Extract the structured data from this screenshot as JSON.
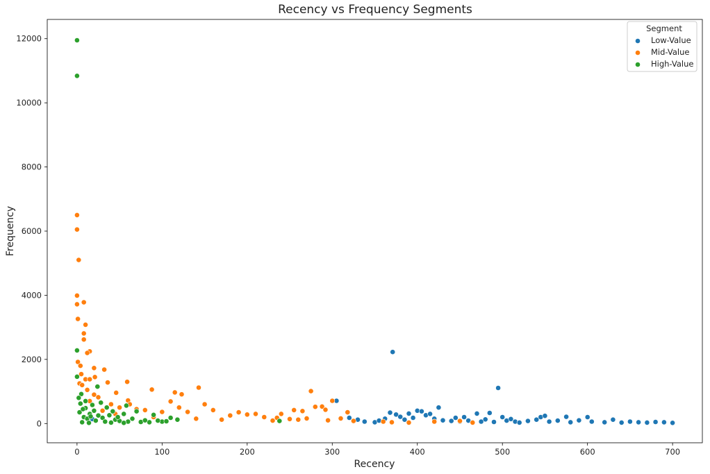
{
  "chart_data": {
    "type": "scatter",
    "title": "Recency vs Frequency Segments",
    "xlabel": "Recency",
    "ylabel": "Frequency",
    "xlim": [
      -35,
      735
    ],
    "ylim": [
      -600,
      12600
    ],
    "xticks": [
      0,
      100,
      200,
      300,
      400,
      500,
      600,
      700
    ],
    "yticks": [
      0,
      2000,
      4000,
      6000,
      8000,
      10000,
      12000
    ],
    "grid": false,
    "legend": {
      "title": "Segment",
      "placement": "top-right",
      "entries": [
        "Low-Value",
        "Mid-Value",
        "High-Value"
      ]
    },
    "series": [
      {
        "name": "Low-Value",
        "color": "#1f77b4",
        "points": [
          [
            305,
            710
          ],
          [
            320,
            180
          ],
          [
            330,
            120
          ],
          [
            338,
            60
          ],
          [
            350,
            40
          ],
          [
            355,
            90
          ],
          [
            362,
            150
          ],
          [
            368,
            340
          ],
          [
            371,
            2230
          ],
          [
            375,
            280
          ],
          [
            380,
            210
          ],
          [
            385,
            120
          ],
          [
            390,
            310
          ],
          [
            395,
            180
          ],
          [
            400,
            400
          ],
          [
            405,
            380
          ],
          [
            410,
            260
          ],
          [
            415,
            300
          ],
          [
            420,
            150
          ],
          [
            425,
            500
          ],
          [
            430,
            100
          ],
          [
            440,
            80
          ],
          [
            445,
            180
          ],
          [
            450,
            60
          ],
          [
            455,
            200
          ],
          [
            460,
            90
          ],
          [
            465,
            40
          ],
          [
            470,
            310
          ],
          [
            475,
            60
          ],
          [
            480,
            130
          ],
          [
            485,
            330
          ],
          [
            490,
            50
          ],
          [
            495,
            1110
          ],
          [
            500,
            200
          ],
          [
            505,
            90
          ],
          [
            510,
            140
          ],
          [
            515,
            60
          ],
          [
            520,
            30
          ],
          [
            530,
            80
          ],
          [
            540,
            120
          ],
          [
            545,
            200
          ],
          [
            550,
            240
          ],
          [
            555,
            60
          ],
          [
            565,
            90
          ],
          [
            575,
            210
          ],
          [
            580,
            40
          ],
          [
            590,
            100
          ],
          [
            600,
            200
          ],
          [
            605,
            60
          ],
          [
            620,
            40
          ],
          [
            630,
            120
          ],
          [
            640,
            30
          ],
          [
            650,
            60
          ],
          [
            660,
            40
          ],
          [
            670,
            30
          ],
          [
            680,
            50
          ],
          [
            690,
            40
          ],
          [
            700,
            20
          ],
          [
            18,
            140
          ]
        ]
      },
      {
        "name": "Mid-Value",
        "color": "#ff7f0e",
        "points": [
          [
            0,
            6500
          ],
          [
            0,
            6050
          ],
          [
            2,
            5100
          ],
          [
            0,
            3990
          ],
          [
            0,
            3720
          ],
          [
            8,
            3780
          ],
          [
            1,
            3260
          ],
          [
            10,
            3080
          ],
          [
            8,
            2810
          ],
          [
            8,
            2620
          ],
          [
            15,
            2250
          ],
          [
            12,
            2200
          ],
          [
            1,
            1920
          ],
          [
            4,
            1800
          ],
          [
            20,
            1730
          ],
          [
            32,
            1680
          ],
          [
            5,
            1540
          ],
          [
            10,
            1380
          ],
          [
            15,
            1380
          ],
          [
            21,
            1450
          ],
          [
            3,
            1250
          ],
          [
            6,
            1200
          ],
          [
            36,
            1280
          ],
          [
            59,
            1300
          ],
          [
            88,
            1060
          ],
          [
            115,
            970
          ],
          [
            123,
            910
          ],
          [
            143,
            1120
          ],
          [
            275,
            1010
          ],
          [
            300,
            710
          ],
          [
            280,
            520
          ],
          [
            288,
            530
          ],
          [
            292,
            430
          ],
          [
            265,
            390
          ],
          [
            255,
            420
          ],
          [
            240,
            300
          ],
          [
            12,
            1050
          ],
          [
            25,
            820
          ],
          [
            46,
            960
          ],
          [
            60,
            720
          ],
          [
            62,
            600
          ],
          [
            70,
            450
          ],
          [
            40,
            600
          ],
          [
            50,
            500
          ],
          [
            80,
            420
          ],
          [
            100,
            360
          ],
          [
            110,
            690
          ],
          [
            120,
            500
          ],
          [
            130,
            360
          ],
          [
            150,
            600
          ],
          [
            160,
            420
          ],
          [
            180,
            250
          ],
          [
            190,
            350
          ],
          [
            200,
            280
          ],
          [
            210,
            300
          ],
          [
            220,
            200
          ],
          [
            235,
            180
          ],
          [
            250,
            140
          ],
          [
            260,
            120
          ],
          [
            270,
            160
          ],
          [
            295,
            100
          ],
          [
            310,
            160
          ],
          [
            318,
            350
          ],
          [
            325,
            80
          ],
          [
            360,
            60
          ],
          [
            370,
            40
          ],
          [
            390,
            30
          ],
          [
            420,
            60
          ],
          [
            450,
            80
          ],
          [
            465,
            30
          ],
          [
            90,
            200
          ],
          [
            140,
            150
          ],
          [
            170,
            120
          ],
          [
            230,
            90
          ],
          [
            45,
            300
          ],
          [
            30,
            400
          ],
          [
            20,
            900
          ],
          [
            15,
            700
          ]
        ]
      },
      {
        "name": "High-Value",
        "color": "#2ca02c",
        "points": [
          [
            0,
            11950
          ],
          [
            0,
            10840
          ],
          [
            0,
            2280
          ],
          [
            0,
            1460
          ],
          [
            5,
            920
          ],
          [
            2,
            800
          ],
          [
            10,
            700
          ],
          [
            24,
            1150
          ],
          [
            58,
            560
          ],
          [
            28,
            650
          ],
          [
            4,
            620
          ],
          [
            18,
            580
          ],
          [
            10,
            480
          ],
          [
            35,
            500
          ],
          [
            42,
            380
          ],
          [
            55,
            300
          ],
          [
            70,
            380
          ],
          [
            90,
            270
          ],
          [
            110,
            180
          ],
          [
            118,
            120
          ],
          [
            15,
            300
          ],
          [
            25,
            250
          ],
          [
            30,
            180
          ],
          [
            45,
            120
          ],
          [
            50,
            80
          ],
          [
            60,
            60
          ],
          [
            75,
            50
          ],
          [
            85,
            40
          ],
          [
            100,
            60
          ],
          [
            238,
            80
          ],
          [
            8,
            200
          ],
          [
            12,
            150
          ],
          [
            20,
            400
          ],
          [
            38,
            260
          ],
          [
            48,
            200
          ],
          [
            65,
            150
          ],
          [
            80,
            100
          ],
          [
            95,
            90
          ],
          [
            105,
            70
          ],
          [
            3,
            350
          ],
          [
            7,
            450
          ],
          [
            16,
            220
          ],
          [
            22,
            90
          ],
          [
            33,
            60
          ],
          [
            40,
            30
          ],
          [
            6,
            40
          ],
          [
            14,
            20
          ],
          [
            55,
            20
          ]
        ]
      }
    ]
  }
}
